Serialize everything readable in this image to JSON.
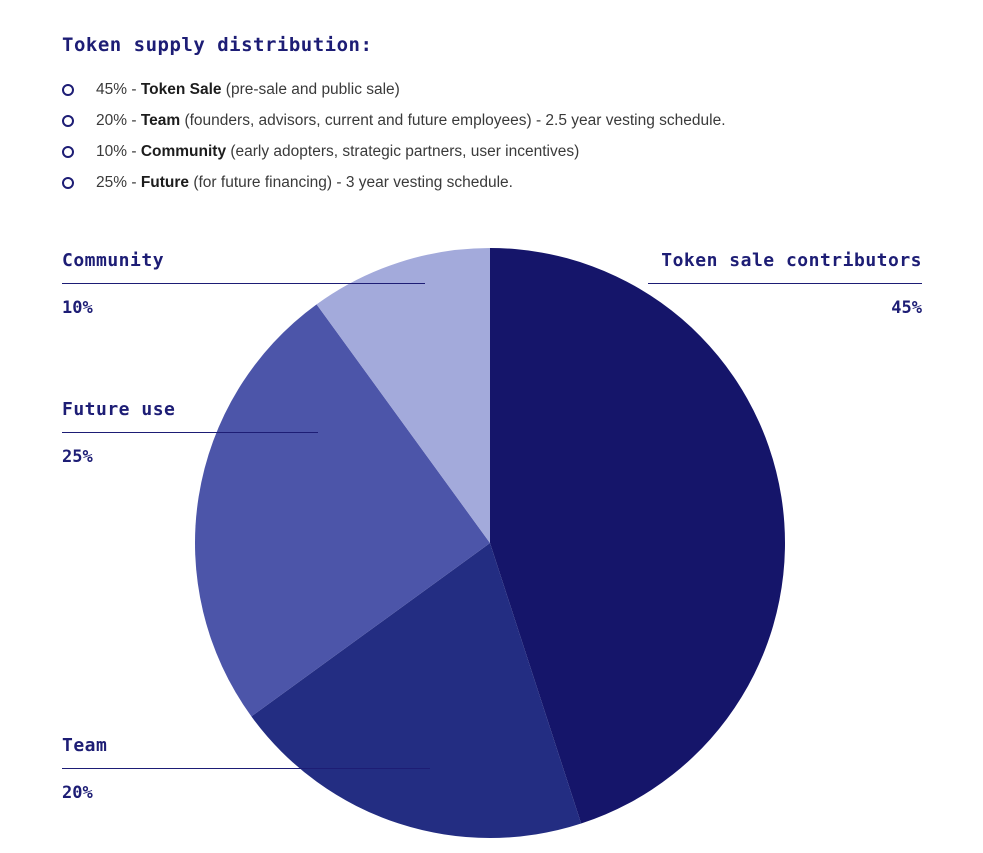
{
  "title": "Token supply distribution:",
  "list": {
    "items": [
      {
        "prefix": "45% - ",
        "bold": "Token Sale",
        "rest": " (pre-sale and public sale)"
      },
      {
        "prefix": "20% - ",
        "bold": "Team",
        "rest": " (founders, advisors, current and future employees) - 2.5 year vesting schedule."
      },
      {
        "prefix": "10% - ",
        "bold": "Community",
        "rest": " (early adopters, strategic partners, user incentives)"
      },
      {
        "prefix": "25% - ",
        "bold": "Future",
        "rest": " (for future financing) - 3 year vesting schedule."
      }
    ]
  },
  "chart_data": {
    "type": "pie",
    "title": "Token supply distribution",
    "start_angle_deg": -90,
    "direction": "clockwise",
    "legend_position": "callout-labels",
    "slices": [
      {
        "label": "Token sale contributors",
        "value": 45,
        "pct_label": "45%",
        "color": "#15156a"
      },
      {
        "label": "Team",
        "value": 20,
        "pct_label": "20%",
        "color": "#232d82"
      },
      {
        "label": "Future use",
        "value": 25,
        "pct_label": "25%",
        "color": "#4c55a9"
      },
      {
        "label": "Community",
        "value": 10,
        "pct_label": "10%",
        "color": "#a3aadb"
      }
    ]
  },
  "colors": {
    "heading": "#1d1d75",
    "body_text": "#3a3a3a",
    "callout_line": "#1d1d75"
  }
}
